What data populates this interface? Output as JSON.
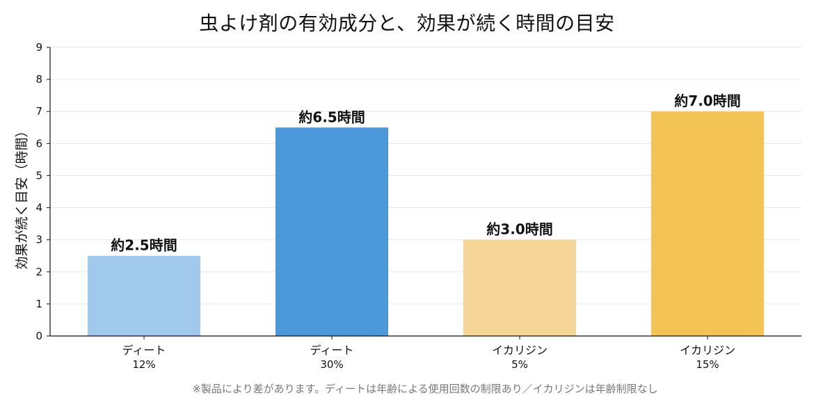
{
  "chart_data": {
    "type": "bar",
    "title": "虫よけ剤の有効成分と、効果が続く時間の目安",
    "ylabel": "効果が続く目安（時間）",
    "xlabel": "",
    "ylim": [
      0,
      9
    ],
    "yticks": [
      0,
      1,
      2,
      3,
      4,
      5,
      6,
      7,
      8,
      9
    ],
    "grid": true,
    "categories": [
      {
        "name": "ディート",
        "concentration": "12%"
      },
      {
        "name": "ディート",
        "concentration": "30%"
      },
      {
        "name": "イカリジン",
        "concentration": "5%"
      },
      {
        "name": "イカリジン",
        "concentration": "15%"
      }
    ],
    "values": [
      2.5,
      6.5,
      3.0,
      7.0
    ],
    "data_labels": [
      "約2.5時間",
      "約6.5時間",
      "約3.0時間",
      "約7.0時間"
    ],
    "colors": [
      "#a0c9eb",
      "#4d98db",
      "#f5d698",
      "#f3c355"
    ],
    "footnote": "※製品により差があります。ディートは年齢による使用回数の制限あり／イカリジンは年齢制限なし"
  }
}
